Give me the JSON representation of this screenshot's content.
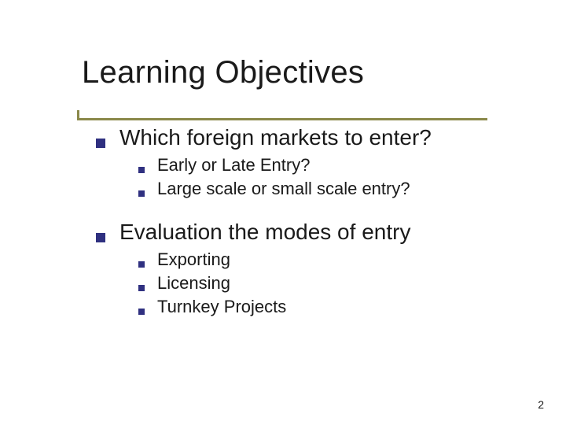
{
  "slide": {
    "title": "Learning Objectives",
    "title_color": "#1a1a1a",
    "title_fontsize": 40,
    "background_color": "#ffffff",
    "accent_color": "#8a884a",
    "bullet_color": "#2f3080",
    "text_color": "#1a1a1a",
    "level1_fontsize": 28,
    "level2_fontsize": 22,
    "bullet1_size": 12,
    "bullet2_size": 8,
    "sections": [
      {
        "heading": "Which foreign markets to enter?",
        "items": [
          "Early or Late Entry?",
          "Large scale or small scale entry?"
        ]
      },
      {
        "heading": "Evaluation the modes of entry",
        "items": [
          "Exporting",
          "Licensing",
          "Turnkey Projects"
        ]
      }
    ],
    "page_number": "2"
  }
}
